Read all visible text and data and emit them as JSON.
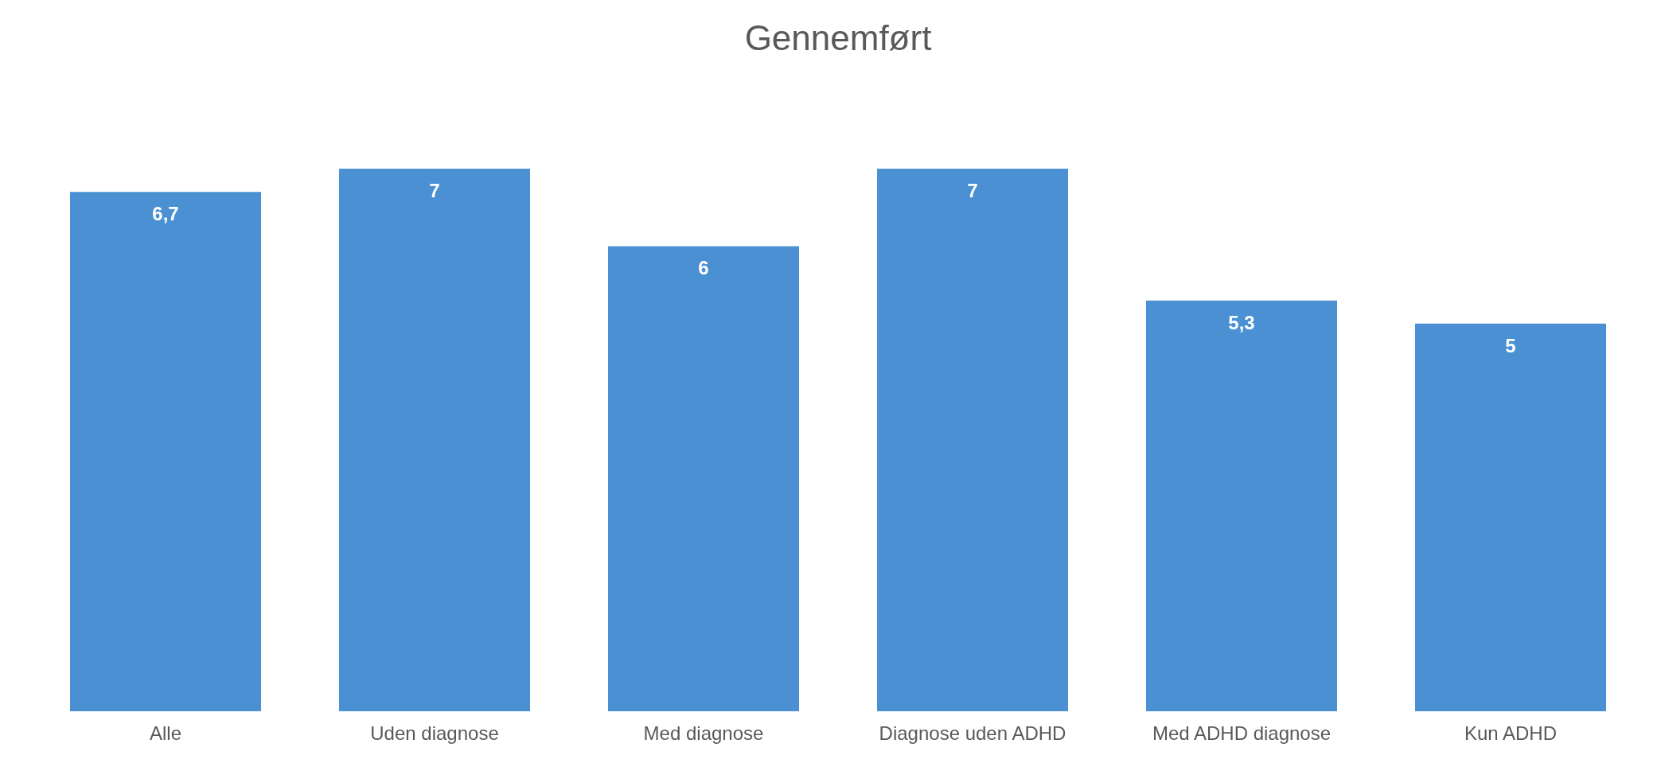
{
  "chart_data": {
    "type": "bar",
    "title": "Gennemført",
    "categories": [
      "Alle",
      "Uden diagnose",
      "Med diagnose",
      "Diagnose uden ADHD",
      "Med ADHD diagnose",
      "Kun ADHD"
    ],
    "values": [
      6.7,
      7,
      6,
      7,
      5.3,
      5
    ],
    "value_labels": [
      "6,7",
      "7",
      "6",
      "7",
      "5,3",
      "5"
    ],
    "color": "#4a90d2"
  }
}
